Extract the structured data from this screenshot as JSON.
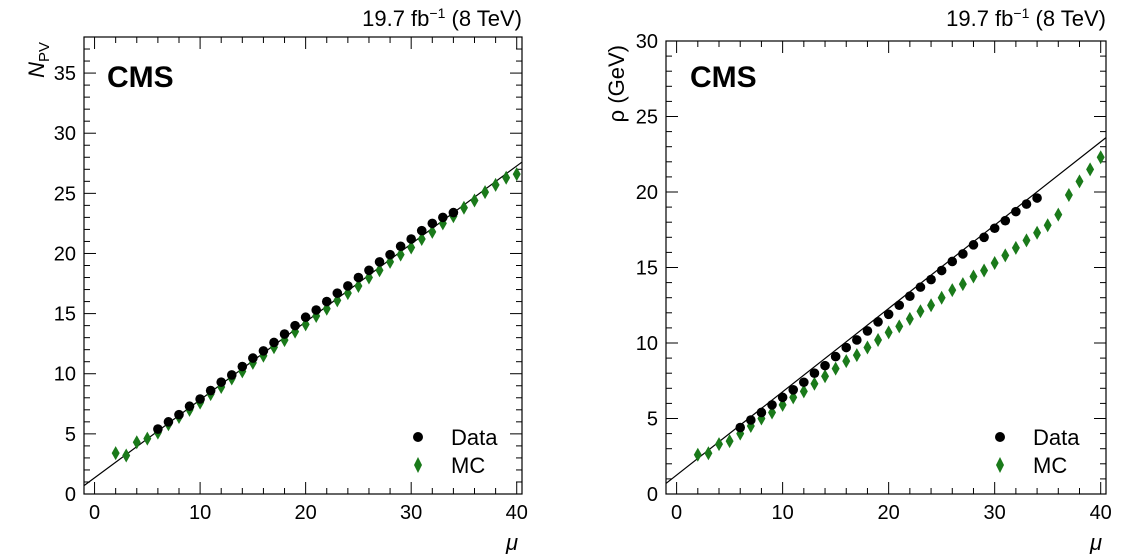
{
  "chart_data": [
    {
      "type": "scatter",
      "cms_label": "CMS",
      "lumi_value": "19.7 fb",
      "lumi_exp": "−1",
      "lumi_energy": " (8 TeV)",
      "xlabel": "μ",
      "ylabel_main": "N",
      "ylabel_sub": "PV",
      "xlim": [
        -1,
        40.5
      ],
      "ylim": [
        0,
        38
      ],
      "xticks": [
        0,
        10,
        20,
        30,
        40
      ],
      "yticks": [
        0,
        5,
        10,
        15,
        20,
        25,
        30,
        35
      ],
      "legend_position": "bottom-right",
      "series": [
        {
          "name": "Data",
          "marker": "circle",
          "color": "#000000",
          "x": [
            6,
            7,
            8,
            9,
            10,
            11,
            12,
            13,
            14,
            15,
            16,
            17,
            18,
            19,
            20,
            21,
            22,
            23,
            24,
            25,
            26,
            27,
            28,
            29,
            30,
            31,
            32,
            33,
            34
          ],
          "y": [
            5.4,
            6.0,
            6.6,
            7.3,
            7.9,
            8.6,
            9.3,
            9.9,
            10.6,
            11.3,
            11.9,
            12.6,
            13.3,
            14.0,
            14.7,
            15.3,
            16.0,
            16.7,
            17.3,
            18.0,
            18.6,
            19.3,
            19.9,
            20.6,
            21.2,
            21.9,
            22.5,
            23.0,
            23.4
          ]
        },
        {
          "name": "MC",
          "marker": "diamond",
          "color": "#1a7a1a",
          "x": [
            2,
            3,
            4,
            5,
            6,
            7,
            8,
            9,
            10,
            11,
            12,
            13,
            14,
            15,
            16,
            17,
            18,
            19,
            20,
            21,
            22,
            23,
            24,
            25,
            26,
            27,
            28,
            29,
            30,
            31,
            32,
            33,
            34,
            35,
            36,
            37,
            38,
            39,
            40
          ],
          "y": [
            3.4,
            3.2,
            4.3,
            4.6,
            5.1,
            5.8,
            6.4,
            7.0,
            7.6,
            8.3,
            8.9,
            9.6,
            10.2,
            10.9,
            11.5,
            12.2,
            12.8,
            13.5,
            14.1,
            14.8,
            15.4,
            16.1,
            16.7,
            17.3,
            18.0,
            18.6,
            19.3,
            19.9,
            20.5,
            21.2,
            21.8,
            22.5,
            23.1,
            23.8,
            24.4,
            25.1,
            25.7,
            26.3,
            26.6
          ]
        }
      ],
      "fit_line": {
        "x0": -1,
        "y0": 0.7,
        "x1": 40.5,
        "y1": 27.6
      }
    },
    {
      "type": "scatter",
      "cms_label": "CMS",
      "lumi_value": "19.7 fb",
      "lumi_exp": "−1",
      "lumi_energy": " (8 TeV)",
      "xlabel": "μ",
      "ylabel_main": "ρ (GeV)",
      "ylabel_sub": "",
      "xlim": [
        -1,
        40.5
      ],
      "ylim": [
        0,
        30
      ],
      "xticks": [
        0,
        10,
        20,
        30,
        40
      ],
      "yticks": [
        0,
        5,
        10,
        15,
        20,
        25,
        30
      ],
      "legend_position": "bottom-right",
      "series": [
        {
          "name": "Data",
          "marker": "circle",
          "color": "#000000",
          "x": [
            6,
            7,
            8,
            9,
            10,
            11,
            12,
            13,
            14,
            15,
            16,
            17,
            18,
            19,
            20,
            21,
            22,
            23,
            24,
            25,
            26,
            27,
            28,
            29,
            30,
            31,
            32,
            33,
            34
          ],
          "y": [
            4.4,
            4.9,
            5.4,
            5.9,
            6.4,
            6.9,
            7.4,
            8.0,
            8.5,
            9.1,
            9.7,
            10.2,
            10.8,
            11.4,
            11.9,
            12.5,
            13.1,
            13.7,
            14.2,
            14.8,
            15.4,
            15.9,
            16.5,
            17.0,
            17.6,
            18.1,
            18.7,
            19.2,
            19.6
          ]
        },
        {
          "name": "MC",
          "marker": "diamond",
          "color": "#1a7a1a",
          "x": [
            2,
            3,
            4,
            5,
            6,
            7,
            8,
            9,
            10,
            11,
            12,
            13,
            14,
            15,
            16,
            17,
            18,
            19,
            20,
            21,
            22,
            23,
            24,
            25,
            26,
            27,
            28,
            29,
            30,
            31,
            32,
            33,
            34,
            35,
            36,
            37,
            38,
            39,
            40
          ],
          "y": [
            2.6,
            2.7,
            3.3,
            3.5,
            4.0,
            4.5,
            5.0,
            5.4,
            5.9,
            6.4,
            6.8,
            7.3,
            7.8,
            8.3,
            8.8,
            9.2,
            9.7,
            10.2,
            10.7,
            11.1,
            11.6,
            12.1,
            12.5,
            13.0,
            13.5,
            13.9,
            14.4,
            14.8,
            15.3,
            15.8,
            16.3,
            16.8,
            17.3,
            17.8,
            18.5,
            19.8,
            20.7,
            21.5,
            22.3
          ]
        }
      ],
      "fit_line": {
        "x0": -1,
        "y0": 0.7,
        "x1": 40.5,
        "y1": 23.6
      }
    }
  ]
}
